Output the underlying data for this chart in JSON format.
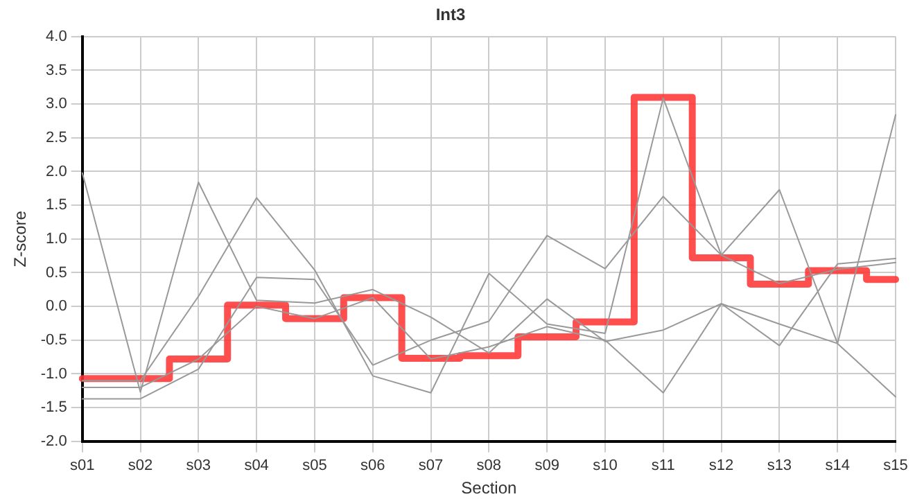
{
  "chart_data": {
    "type": "line",
    "title": "Int3",
    "xlabel": "Section",
    "ylabel": "Z-score",
    "categories": [
      "s01",
      "s02",
      "s03",
      "s04",
      "s05",
      "s06",
      "s07",
      "s08",
      "s09",
      "s10",
      "s11",
      "s12",
      "s13",
      "s14",
      "s15"
    ],
    "series": [
      {
        "color": "#999999",
        "values": [
          1.98,
          -1.27,
          1.84,
          0.09,
          0.05,
          0.25,
          -0.16,
          -0.69,
          0.11,
          -0.52,
          -0.35,
          0.04,
          -0.26,
          -0.55,
          -1.34
        ]
      },
      {
        "color": "#999999",
        "values": [
          -1.37,
          -1.37,
          -0.93,
          0.43,
          0.4,
          -0.87,
          -0.5,
          -0.22,
          1.05,
          0.56,
          1.63,
          0.76,
          0.34,
          0.55,
          0.65
        ]
      },
      {
        "color": "#999999",
        "values": [
          -1.1,
          -1.1,
          0.15,
          1.61,
          0.54,
          -1.03,
          -1.28,
          0.49,
          -0.26,
          -0.4,
          3.09,
          0.76,
          1.73,
          -0.55,
          2.84
        ]
      },
      {
        "color": "#999999",
        "values": [
          -1.2,
          -1.2,
          -0.78,
          0.0,
          -0.18,
          0.13,
          -0.78,
          -0.6,
          -0.3,
          -0.5,
          -1.28,
          0.04,
          -0.58,
          0.63,
          0.71
        ]
      },
      {
        "type": "step",
        "color": "#ff3333",
        "values": [
          -1.07,
          -1.07,
          -0.78,
          0.02,
          -0.18,
          0.13,
          -0.77,
          -0.73,
          -0.45,
          -0.23,
          3.1,
          0.72,
          0.33,
          0.53,
          0.4
        ]
      }
    ],
    "ylim": [
      -2,
      4
    ],
    "yticks": [
      {
        "value": -2,
        "label": "-2.0"
      },
      {
        "value": -1.5,
        "label": "-1.5"
      },
      {
        "value": -1,
        "label": "-1.0"
      },
      {
        "value": -0.5,
        "label": "-0.5"
      },
      {
        "value": 0,
        "label": "0.0"
      },
      {
        "value": 0.5,
        "label": "0.5"
      },
      {
        "value": 1,
        "label": "1.0"
      },
      {
        "value": 1.5,
        "label": "1.5"
      },
      {
        "value": 2,
        "label": "2.0"
      },
      {
        "value": 2.5,
        "label": "2.5"
      },
      {
        "value": 3,
        "label": "3.0"
      },
      {
        "value": 3.5,
        "label": "3.5"
      },
      {
        "value": 4,
        "label": "4.0"
      }
    ],
    "grid": true,
    "legend": false,
    "marker": "none",
    "line_style": "solid"
  }
}
